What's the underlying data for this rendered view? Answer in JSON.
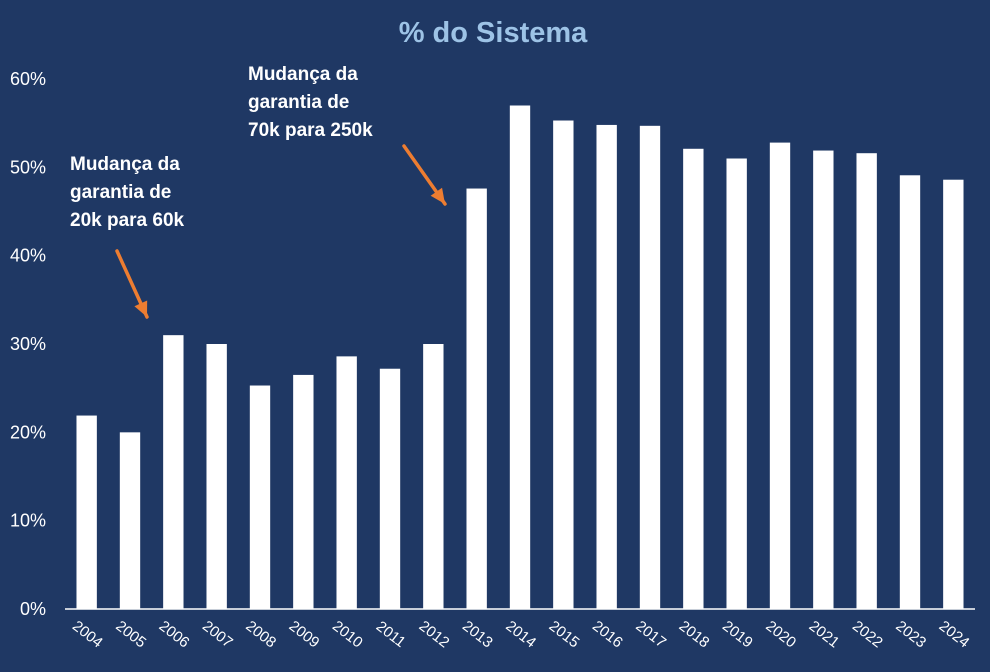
{
  "chart_data": {
    "type": "bar",
    "title": "% do Sistema",
    "categories": [
      "2004",
      "2005",
      "2006",
      "2007",
      "2008",
      "2009",
      "2010",
      "2011",
      "2012",
      "2013",
      "2014",
      "2015",
      "2016",
      "2017",
      "2018",
      "2019",
      "2020",
      "2021",
      "2022",
      "2023",
      "2024"
    ],
    "series": [
      {
        "values": [
          21.9,
          20.0,
          31.0,
          30.0,
          25.3,
          26.5,
          28.6,
          27.2,
          30.0,
          47.6,
          57.0,
          55.3,
          54.8,
          54.7,
          52.1,
          51.0,
          52.8,
          51.9,
          51.6,
          49.1,
          48.6
        ]
      }
    ],
    "ylim": [
      0,
      60
    ],
    "yticks": [
      0,
      10,
      20,
      30,
      40,
      50,
      60
    ],
    "ytick_labels": [
      "0%",
      "10%",
      "20%",
      "30%",
      "40%",
      "50%",
      "60%"
    ],
    "xlabel": "",
    "ylabel": "",
    "grid": false,
    "annotations": [
      {
        "lines": [
          "Mudança da",
          "garantia de",
          "20k para 60k"
        ],
        "target_category": "2006"
      },
      {
        "lines": [
          "Mudança da",
          "garantia de",
          "70k para 250k"
        ],
        "target_category": "2013"
      }
    ],
    "colors": {
      "background": "#1f3864",
      "bars": "#ffffff",
      "title": "#9dc3e6",
      "text": "#ffffff",
      "axis": "#ffffff",
      "arrow": "#ed7d31"
    }
  }
}
